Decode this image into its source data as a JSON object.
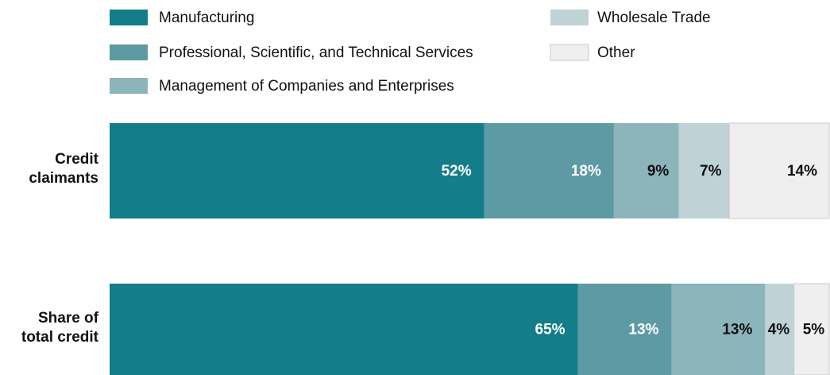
{
  "chart_data": {
    "type": "stacked-bar",
    "categories": [
      "Credit claimants",
      "Share of total credit"
    ],
    "xlim": [
      0,
      100
    ],
    "series": [
      {
        "name": "Manufacturing",
        "color": "#147d8a",
        "label_color": "#ffffff",
        "values": [
          52,
          65
        ],
        "value_labels": [
          "52%",
          "65%"
        ]
      },
      {
        "name": "Professional, Scientific, and Technical Services",
        "color": "#5e9aa4",
        "label_color": "#ffffff",
        "values": [
          18,
          13
        ],
        "value_labels": [
          "18%",
          "13%"
        ]
      },
      {
        "name": "Management of Companies and Enterprises",
        "color": "#8cb4bb",
        "label_color": "#111111",
        "values": [
          9,
          13
        ],
        "value_labels": [
          "9%",
          "13%"
        ]
      },
      {
        "name": "Wholesale Trade",
        "color": "#bfd3d6",
        "label_color": "#111111",
        "values": [
          7,
          4
        ],
        "value_labels": [
          "7%",
          "4%"
        ]
      },
      {
        "name": "Other",
        "color": "#efefef",
        "label_color": "#111111",
        "values": [
          14,
          5
        ],
        "value_labels": [
          "14%",
          "5%"
        ]
      }
    ]
  }
}
